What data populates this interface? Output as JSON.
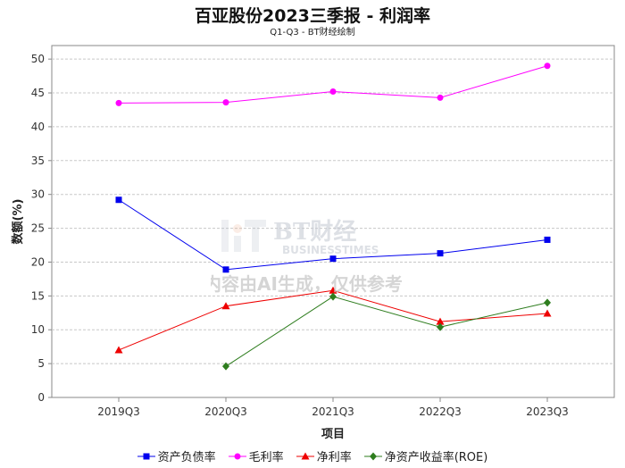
{
  "title": "百亚股份2023三季报 - 利润率",
  "subtitle": "Q1-Q3 - BT财经绘制",
  "watermark": {
    "brand": "BT财经",
    "brand_en": "BUSINESSTIMES",
    "notice": "内容由AI生成，仅供参考"
  },
  "chart_data": {
    "type": "line",
    "categories": [
      "2019Q3",
      "2020Q3",
      "2021Q3",
      "2022Q3",
      "2023Q3"
    ],
    "xlabel": "项目",
    "ylabel": "数额(%)",
    "ylim": [
      0,
      52
    ],
    "yticks": [
      0,
      5,
      10,
      15,
      20,
      25,
      30,
      35,
      40,
      45,
      50
    ],
    "grid": true,
    "legend_position": "bottom",
    "series": [
      {
        "name": "资产负债率",
        "color": "#0000ee",
        "marker": "square",
        "values": [
          29.2,
          18.9,
          20.5,
          21.3,
          23.3
        ]
      },
      {
        "name": "毛利率",
        "color": "#ff00ff",
        "marker": "circle",
        "values": [
          43.5,
          43.6,
          45.2,
          44.3,
          49.0
        ]
      },
      {
        "name": "净利率",
        "color": "#ee0000",
        "marker": "triangle",
        "values": [
          7.0,
          13.5,
          15.8,
          11.2,
          12.4
        ]
      },
      {
        "name": "净资产收益率(ROE)",
        "color": "#2e7d1e",
        "marker": "diamond",
        "values": [
          null,
          4.6,
          14.9,
          10.4,
          14.0
        ]
      }
    ]
  }
}
